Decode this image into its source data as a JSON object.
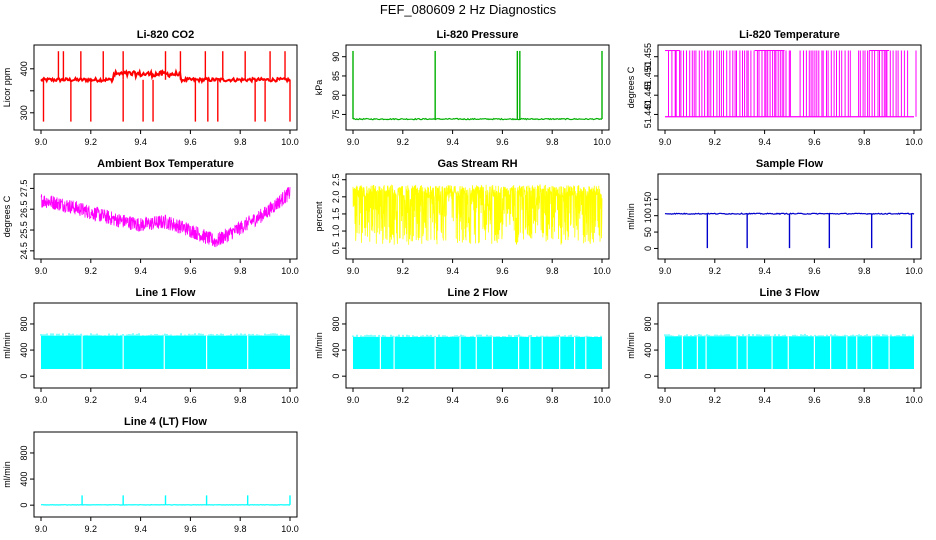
{
  "figure": {
    "title": "FEF_080609  2 Hz Diagnostics"
  },
  "chart_data": [
    {
      "type": "line",
      "title": "Li-820 CO2",
      "ylabel": "Licor ppm",
      "color": "#ff0000",
      "xlim": [
        9.0,
        10.0
      ],
      "ylim": [
        270,
        445
      ],
      "x_ticks": [
        "9.0",
        "9.2",
        "9.4",
        "9.6",
        "9.8",
        "10.0"
      ],
      "x_tick_values": [
        9.0,
        9.2,
        9.4,
        9.6,
        9.8,
        10.0
      ],
      "y_ticks": [
        "300",
        "",
        "400"
      ],
      "y_tick_values": [
        300,
        350,
        400
      ],
      "pattern": "baseline-spikes",
      "baseline": 375,
      "hump": [
        9.29,
        9.56,
        388
      ],
      "noise": 4,
      "spikes_up": [
        9.07,
        9.09,
        9.16,
        9.25,
        9.33,
        9.5,
        9.56,
        9.66,
        9.73,
        9.82,
        9.92,
        9.98
      ],
      "spikes_up_level": 440,
      "spikes_down": [
        9.01,
        9.12,
        9.2,
        9.33,
        9.41,
        9.45,
        9.62,
        9.67,
        9.71,
        9.86,
        9.9,
        10.0
      ],
      "spikes_down_level": 280
    },
    {
      "type": "line",
      "title": "Li-820 Pressure",
      "ylabel": "kPa",
      "color": "#00b000",
      "xlim": [
        9.0,
        10.0
      ],
      "ylim": [
        72,
        92
      ],
      "x_ticks": [
        "9.0",
        "9.2",
        "9.4",
        "9.6",
        "9.8",
        "10.0"
      ],
      "x_tick_values": [
        9.0,
        9.2,
        9.4,
        9.6,
        9.8,
        10.0
      ],
      "y_ticks": [
        "75",
        "80",
        "85",
        "90"
      ],
      "y_tick_values": [
        75,
        80,
        85,
        90
      ],
      "pattern": "baseline-spikes",
      "baseline": 73.8,
      "noise": 0.15,
      "spikes_up": [
        9.0,
        9.33,
        9.66,
        9.67,
        10.0
      ],
      "spikes_up_level": 91.5,
      "spikes_down": [],
      "spikes_down_level": 73
    },
    {
      "type": "line",
      "title": "Li-820 Temperature",
      "ylabel": "degrees C",
      "color": "#ff00ff",
      "xlim": [
        9.0,
        10.0
      ],
      "ylim": [
        51.437,
        51.457
      ],
      "x_ticks": [
        "9.0",
        "9.2",
        "9.4",
        "9.6",
        "9.8",
        "10.0"
      ],
      "x_tick_values": [
        9.0,
        9.2,
        9.4,
        9.6,
        9.8,
        10.0
      ],
      "y_ticks": [
        "51.440",
        "51.445",
        "51.450",
        "51.455"
      ],
      "y_tick_values": [
        51.44,
        51.445,
        51.45,
        51.455
      ],
      "pattern": "toggle",
      "low": 51.4394,
      "high": 51.4566,
      "gaps": [
        [
          9.505,
          9.535
        ],
        [
          9.745,
          9.775
        ],
        [
          9.985,
          10.0
        ]
      ]
    },
    {
      "type": "line",
      "title": "Ambient Box Temperature",
      "ylabel": "degrees C",
      "color": "#ff00ff",
      "xlim": [
        9.0,
        10.0
      ],
      "ylim": [
        24.3,
        28.0
      ],
      "x_ticks": [
        "9.0",
        "9.2",
        "9.4",
        "9.6",
        "9.8",
        "10.0"
      ],
      "x_tick_values": [
        9.0,
        9.2,
        9.4,
        9.6,
        9.8,
        10.0
      ],
      "y_ticks": [
        "24.5",
        "25.5",
        "26.5",
        "27.5"
      ],
      "y_tick_values": [
        24.5,
        25.5,
        26.5,
        27.5
      ],
      "pattern": "noisy-curve",
      "band": 0.7,
      "curve": [
        [
          9.0,
          26.95
        ],
        [
          9.1,
          26.7
        ],
        [
          9.2,
          26.35
        ],
        [
          9.3,
          26.0
        ],
        [
          9.4,
          25.75
        ],
        [
          9.5,
          25.9
        ],
        [
          9.6,
          25.5
        ],
        [
          9.7,
          24.95
        ],
        [
          9.8,
          25.6
        ],
        [
          9.9,
          26.3
        ],
        [
          10.0,
          27.3
        ]
      ]
    },
    {
      "type": "line",
      "title": "Gas Stream RH",
      "ylabel": "percent",
      "color": "#ffff00",
      "xlim": [
        9.0,
        10.0
      ],
      "ylim": [
        0.3,
        2.55
      ],
      "x_ticks": [
        "9.0",
        "9.2",
        "9.4",
        "9.6",
        "9.8",
        "10.0"
      ],
      "x_tick_values": [
        9.0,
        9.2,
        9.4,
        9.6,
        9.8,
        10.0
      ],
      "y_ticks": [
        "0.5",
        "1.0",
        "1.5",
        "2.0",
        "2.5"
      ],
      "y_tick_values": [
        0.5,
        1.0,
        1.5,
        2.0,
        2.5
      ],
      "pattern": "dense-random",
      "low": 0.6,
      "high": 2.35,
      "mid": 1.9
    },
    {
      "type": "line",
      "title": "Sample Flow",
      "ylabel": "ml/min",
      "color": "#0000cc",
      "xlim": [
        9.0,
        10.0
      ],
      "ylim": [
        -20,
        215
      ],
      "x_ticks": [
        "9.0",
        "9.2",
        "9.4",
        "9.6",
        "9.8",
        "10.0"
      ],
      "x_tick_values": [
        9.0,
        9.2,
        9.4,
        9.6,
        9.8,
        10.0
      ],
      "y_ticks": [
        "0",
        "50",
        "100",
        "150"
      ],
      "y_tick_values": [
        0,
        50,
        100,
        150
      ],
      "pattern": "baseline-spikes",
      "baseline": 106,
      "noise": 1.5,
      "spikes_up": [],
      "spikes_up_level": 110,
      "spikes_down": [
        9.17,
        9.33,
        9.5,
        9.66,
        9.83,
        9.99
      ],
      "spikes_down_level": 1
    },
    {
      "type": "line",
      "title": "Line 1 Flow",
      "ylabel": "ml/min",
      "color": "#00ffff",
      "xlim": [
        9.0,
        10.0
      ],
      "ylim": [
        -120,
        1060
      ],
      "x_ticks": [
        "9.0",
        "9.2",
        "9.4",
        "9.6",
        "9.8",
        "10.0"
      ],
      "x_tick_values": [
        9.0,
        9.2,
        9.4,
        9.6,
        9.8,
        10.0
      ],
      "y_ticks": [
        "0",
        "400",
        "800"
      ],
      "y_tick_values": [
        0,
        400,
        800
      ],
      "pattern": "block",
      "low": 110,
      "high": 620,
      "gaps": [
        9.165,
        9.33,
        9.495,
        9.665,
        9.83
      ]
    },
    {
      "type": "line",
      "title": "Line 2 Flow",
      "ylabel": "ml/min",
      "color": "#00ffff",
      "xlim": [
        9.0,
        10.0
      ],
      "ylim": [
        -120,
        1060
      ],
      "x_ticks": [
        "9.0",
        "9.2",
        "9.4",
        "9.6",
        "9.8",
        "10.0"
      ],
      "x_tick_values": [
        9.0,
        9.2,
        9.4,
        9.6,
        9.8,
        10.0
      ],
      "y_ticks": [
        "0",
        "400",
        "800"
      ],
      "y_tick_values": [
        0,
        400,
        800
      ],
      "pattern": "block",
      "low": 110,
      "high": 600,
      "gaps": [
        9.11,
        9.165,
        9.33,
        9.43,
        9.495,
        9.56,
        9.665,
        9.71,
        9.76,
        9.83,
        9.89,
        9.935
      ]
    },
    {
      "type": "line",
      "title": "Line 3 Flow",
      "ylabel": "ml/min",
      "color": "#00ffff",
      "xlim": [
        9.0,
        10.0
      ],
      "ylim": [
        -120,
        1060
      ],
      "x_ticks": [
        "9.0",
        "9.2",
        "9.4",
        "9.6",
        "9.8",
        "10.0"
      ],
      "x_tick_values": [
        9.0,
        9.2,
        9.4,
        9.6,
        9.8,
        10.0
      ],
      "y_ticks": [
        "0",
        "400",
        "800"
      ],
      "y_tick_values": [
        0,
        400,
        800
      ],
      "pattern": "block",
      "low": 110,
      "high": 610,
      "gaps": [
        9.07,
        9.13,
        9.165,
        9.29,
        9.33,
        9.43,
        9.495,
        9.6,
        9.665,
        9.73,
        9.77,
        9.83,
        9.9
      ]
    },
    {
      "type": "line",
      "title": "Line 4 (LT) Flow",
      "ylabel": "ml/min",
      "color": "#00ffff",
      "xlim": [
        9.0,
        10.0
      ],
      "ylim": [
        -120,
        1060
      ],
      "x_ticks": [
        "9.0",
        "9.2",
        "9.4",
        "9.6",
        "9.8",
        "10.0"
      ],
      "x_tick_values": [
        9.0,
        9.2,
        9.4,
        9.6,
        9.8,
        10.0
      ],
      "y_ticks": [
        "0",
        "400",
        "800"
      ],
      "y_tick_values": [
        0,
        400,
        800
      ],
      "pattern": "baseline-spikes",
      "baseline": 5,
      "noise": 3,
      "spikes_up": [
        9.165,
        9.33,
        9.5,
        9.665,
        9.83,
        10.0
      ],
      "spikes_up_level": 150,
      "spikes_down": [],
      "spikes_down_level": 0
    }
  ]
}
